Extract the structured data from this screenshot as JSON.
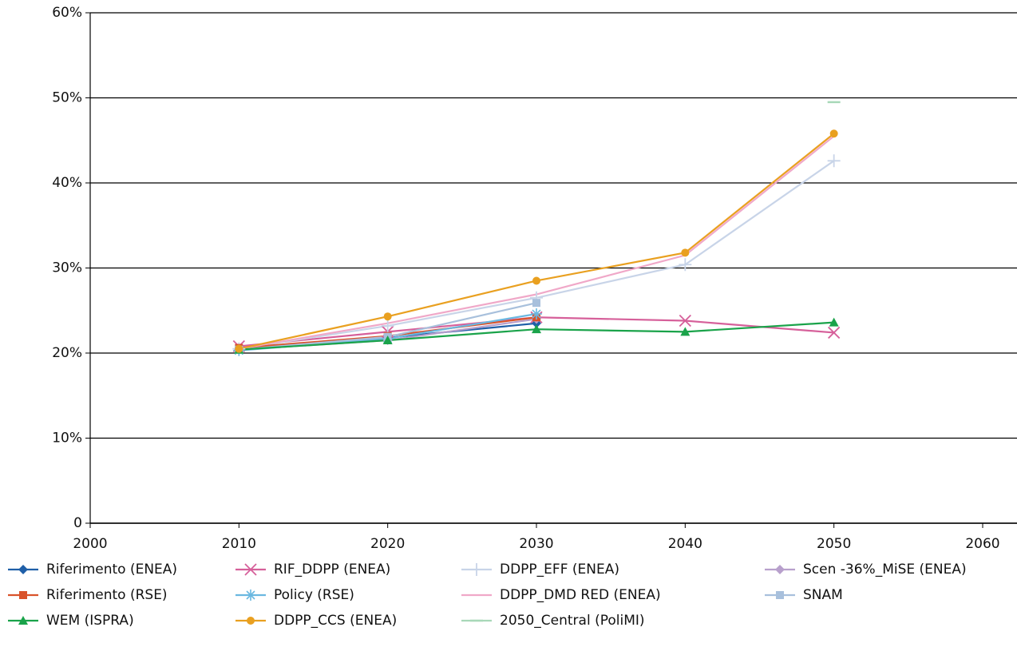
{
  "chart_data": {
    "type": "line",
    "x": [
      2010,
      2020,
      2030,
      2040,
      2050
    ],
    "xlim": [
      2000,
      2060
    ],
    "xticks": [
      2000,
      2010,
      2020,
      2030,
      2040,
      2050,
      2060
    ],
    "ylim": [
      0,
      60
    ],
    "yticks": [
      0,
      {
        "value": 10,
        "label": "10%"
      },
      {
        "value": 20,
        "label": "20%"
      },
      {
        "value": 30,
        "label": "30%"
      },
      {
        "value": 40,
        "label": "40%"
      },
      {
        "value": 50,
        "label": "50%"
      },
      {
        "value": 60,
        "label": "60%"
      }
    ],
    "grid": true,
    "series": [
      {
        "name": "Riferimento (ENEA)",
        "color": "#1f5fa8",
        "marker": "diamond",
        "values": [
          20.5,
          21.8,
          23.5,
          null,
          null
        ]
      },
      {
        "name": "RIF_DDPP (ENEA)",
        "color": "#d6609a",
        "marker": "x",
        "values": [
          20.8,
          22.5,
          24.2,
          23.8,
          22.4
        ]
      },
      {
        "name": "DDPP_EFF (ENEA)",
        "color": "#c8d4e8",
        "marker": "plus",
        "values": [
          20.5,
          23.2,
          26.5,
          30.4,
          42.6
        ]
      },
      {
        "name": "Scen -36%_MiSE (ENEA)",
        "color": "#b8a0cc",
        "marker": "diamond",
        "values": [
          20.4,
          21.5,
          24.0,
          null,
          null
        ]
      },
      {
        "name": "Riferimento (RSE)",
        "color": "#d9532b",
        "marker": "square",
        "values": [
          20.6,
          22.0,
          24.2,
          null,
          null
        ]
      },
      {
        "name": "Policy (RSE)",
        "color": "#6bb8e0",
        "marker": "asterisk",
        "values": [
          20.3,
          21.7,
          24.6,
          null,
          null
        ]
      },
      {
        "name": "DDPP_DMD RED (ENEA)",
        "color": "#f0a8c8",
        "marker": "none",
        "values": [
          20.5,
          23.5,
          26.9,
          31.5,
          45.5
        ]
      },
      {
        "name": "SNAM",
        "color": "#a8c0dc",
        "marker": "square",
        "values": [
          20.4,
          21.9,
          25.9,
          null,
          null
        ]
      },
      {
        "name": "WEM (ISPRA)",
        "color": "#1aa34a",
        "marker": "triangle",
        "values": [
          20.4,
          21.5,
          22.8,
          22.5,
          23.6
        ]
      },
      {
        "name": "DDPP_CCS (ENEA)",
        "color": "#e9a020",
        "marker": "circle",
        "values": [
          20.5,
          24.3,
          28.5,
          31.8,
          45.8
        ]
      },
      {
        "name": "2050_Central (PoliMI)",
        "color": "#a8d8b8",
        "marker": "dash",
        "values": [
          null,
          null,
          null,
          null,
          49.5
        ]
      }
    ]
  }
}
